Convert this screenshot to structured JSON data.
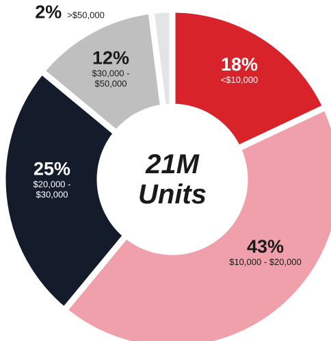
{
  "chart_data": {
    "type": "donut",
    "center_label": "21M Units",
    "categories": [
      "<$10,000",
      "$10,000 - $20,000",
      "$20,000 - $30,000",
      "$30,000 - $50,000",
      ">$50,000"
    ],
    "values": [
      18,
      43,
      25,
      12,
      2
    ],
    "value_labels": [
      "18%",
      "43%",
      "25%",
      "12%",
      "2%"
    ],
    "colors": [
      "#d8232a",
      "#efa0ab",
      "#141c2b",
      "#bfbfbf",
      "#e3e4e6"
    ]
  }
}
